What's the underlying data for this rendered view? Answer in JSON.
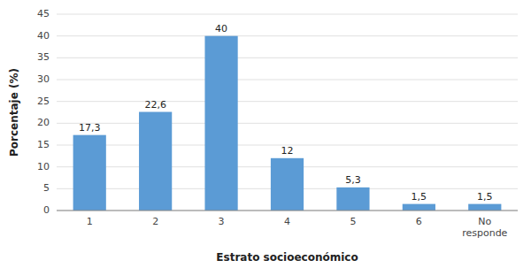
{
  "chart_data": {
    "type": "bar",
    "xlabel": "Estrato socioeconómico",
    "ylabel": "Porcentaje (%)",
    "categories": [
      "1",
      "2",
      "3",
      "4",
      "5",
      "6",
      "No\nresponde"
    ],
    "values": [
      17.3,
      22.6,
      40,
      12,
      5.3,
      1.5,
      1.5
    ],
    "value_labels": [
      "17,3",
      "22,6",
      "40",
      "12",
      "5,3",
      "1,5",
      "1,5"
    ],
    "data_labels": true,
    "color": "#5B9BD5",
    "ylim": [
      0,
      45
    ],
    "yticks": [
      0,
      5,
      10,
      15,
      20,
      25,
      30,
      35,
      40,
      45
    ],
    "grid": true
  }
}
